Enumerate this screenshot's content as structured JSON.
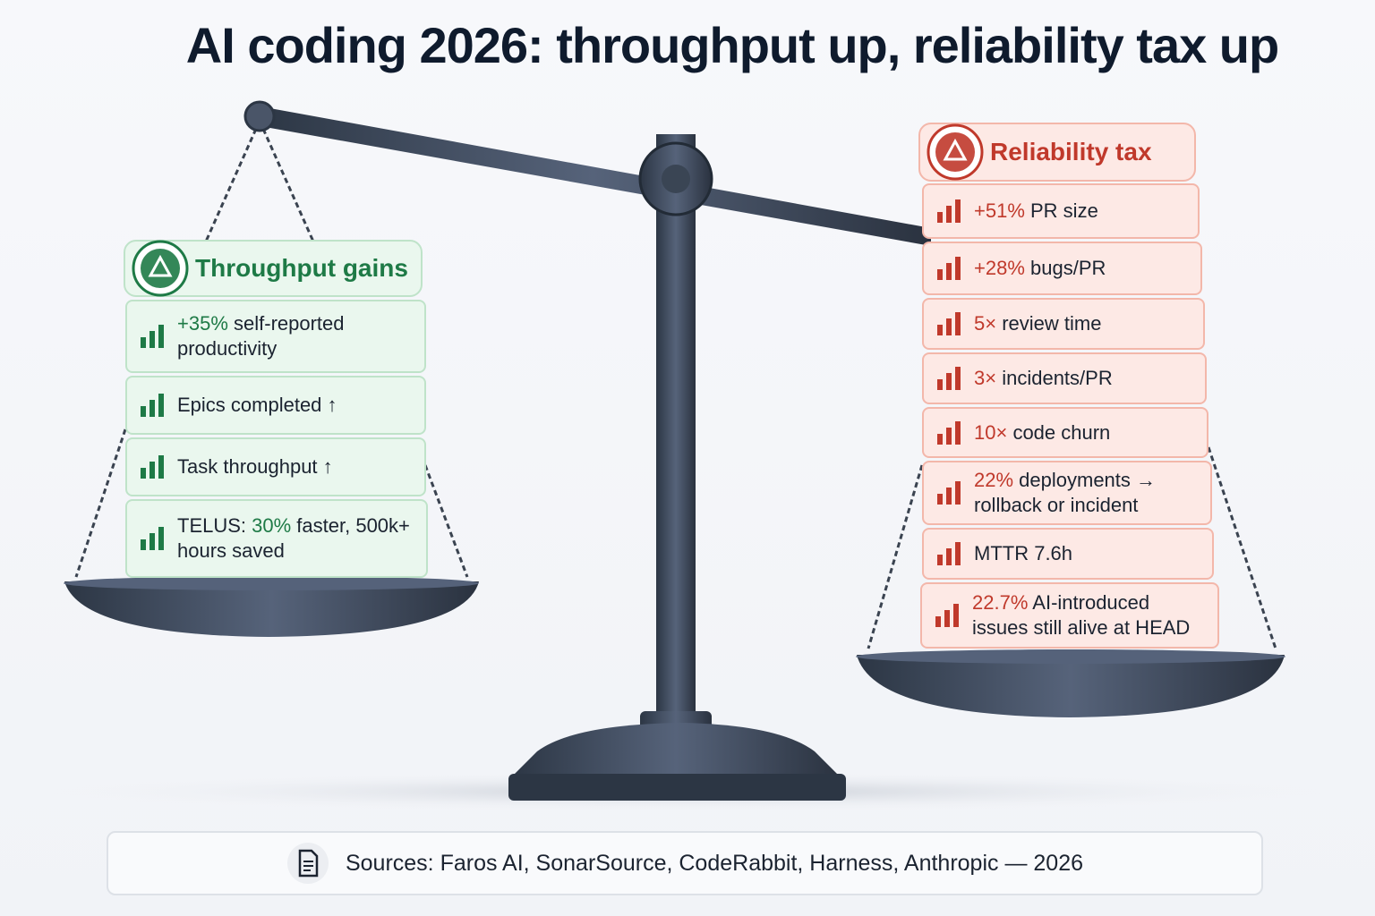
{
  "title": "AI coding 2026: throughput up, reliability tax up",
  "left_panel": {
    "heading": "Throughput gains",
    "items": [
      {
        "parts": [
          {
            "text": "+35%",
            "accent": true
          },
          {
            "text": " self-reported productivity"
          }
        ]
      },
      {
        "parts": [
          {
            "text": "Epics completed ↑"
          }
        ]
      },
      {
        "parts": [
          {
            "text": "Task throughput ↑"
          }
        ]
      },
      {
        "parts": [
          {
            "text": "TELUS: "
          },
          {
            "text": "30%",
            "accent": true
          },
          {
            "text": " faster, 500k+ hours saved"
          }
        ]
      }
    ]
  },
  "right_panel": {
    "heading": "Reliability tax",
    "items": [
      {
        "parts": [
          {
            "text": "+51%",
            "accent": true
          },
          {
            "text": " PR size"
          }
        ]
      },
      {
        "parts": [
          {
            "text": "+28%",
            "accent": true
          },
          {
            "text": " bugs/PR"
          }
        ]
      },
      {
        "parts": [
          {
            "text": "5×",
            "accent": true
          },
          {
            "text": " review time"
          }
        ]
      },
      {
        "parts": [
          {
            "text": "3×",
            "accent": true
          },
          {
            "text": " incidents/PR"
          }
        ]
      },
      {
        "parts": [
          {
            "text": "10×",
            "accent": true
          },
          {
            "text": " code churn"
          }
        ]
      },
      {
        "parts": [
          {
            "text": "22%",
            "accent": true
          },
          {
            "text": " deployments → rollback or incident"
          }
        ]
      },
      {
        "parts": [
          {
            "text": "MTTR 7.6h"
          }
        ]
      },
      {
        "parts": [
          {
            "text": "22.7%",
            "accent": true
          },
          {
            "text": " AI-introduced issues still alive at HEAD"
          }
        ]
      }
    ]
  },
  "sources": "Sources: Faros AI, SonarSource, CodeRabbit, Harness, Anthropic — 2026"
}
